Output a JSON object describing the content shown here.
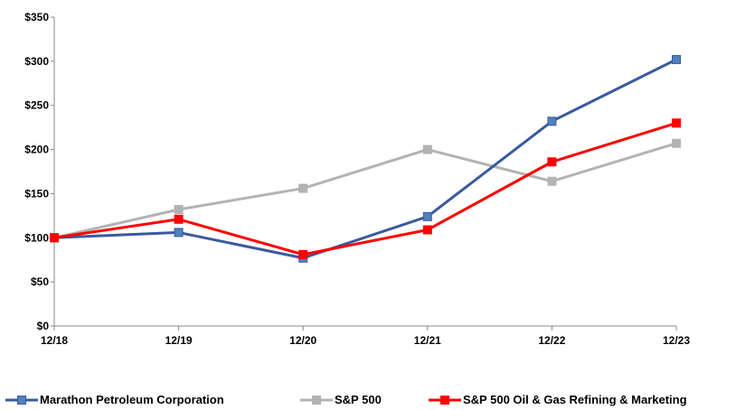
{
  "chart_data": {
    "type": "line",
    "categories": [
      "12/18",
      "12/19",
      "12/20",
      "12/21",
      "12/22",
      "12/23"
    ],
    "y_ticks": [
      "$0",
      "$50",
      "$100",
      "$150",
      "$200",
      "$250",
      "$300",
      "$350"
    ],
    "ylim": [
      0,
      350
    ],
    "grid": false,
    "legend_position": "bottom",
    "series": [
      {
        "name": "Marathon Petroleum Corporation",
        "color": "#3a5a9c",
        "marker_color": "#4f81bd",
        "values": [
          100,
          106,
          77,
          124,
          232,
          302
        ]
      },
      {
        "name": "S&P 500",
        "color": "#b3b3b3",
        "marker_color": "#b3b3b3",
        "values": [
          100,
          132,
          156,
          200,
          164,
          207
        ]
      },
      {
        "name": "S&P 500 Oil & Gas Refining & Marketing",
        "color": "#ff0000",
        "marker_color": "#ff0000",
        "values": [
          100,
          121,
          81,
          109,
          186,
          230
        ]
      }
    ]
  }
}
